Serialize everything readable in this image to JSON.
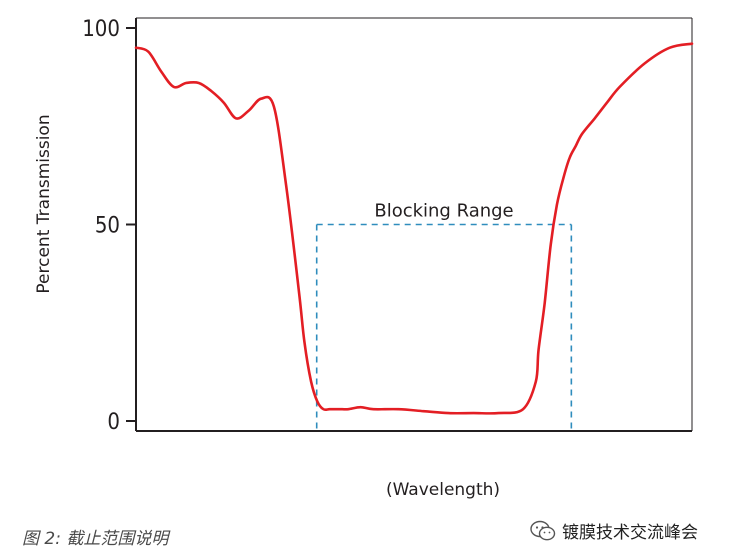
{
  "chart_data": {
    "type": "line",
    "xlabel": "(Wavelength)",
    "ylabel": "Percent Transmission",
    "xlim": [
      0,
      100
    ],
    "ylim": [
      0,
      100
    ],
    "yticks": [
      0,
      50,
      100
    ],
    "grid": false,
    "series": [
      {
        "color": "#e31e24",
        "x": [
          0,
          2.2,
          4.5,
          6.8,
          9,
          11.3,
          13.5,
          15.8,
          18,
          20.3,
          22.5,
          24.8,
          27,
          29.3,
          30.3,
          31.5,
          32.6,
          33.7,
          34.8,
          36,
          37.1,
          38.2,
          40.4,
          42.7,
          47.2,
          51.7,
          56.2,
          60.7,
          65.2,
          69.6,
          71.9,
          72.4,
          73.5,
          74.6,
          75.7,
          76.9,
          78,
          79.1,
          80.2,
          82.5,
          84.7,
          87,
          91.5,
          96,
          100
        ],
        "y": [
          95,
          94,
          89,
          85,
          86,
          86,
          84,
          81,
          77,
          79,
          82,
          80,
          60,
          33,
          20,
          10,
          5,
          3,
          3,
          3,
          3,
          3,
          3.5,
          3,
          3,
          2.5,
          2,
          2,
          2,
          3,
          10,
          18,
          30,
          45,
          55,
          62,
          67,
          70,
          73,
          77,
          81,
          85,
          91,
          95,
          96
        ]
      }
    ],
    "annotations": [
      {
        "text": "Blocking Range",
        "y": 50,
        "x_start": 32.5,
        "x_end": 78.3
      }
    ]
  },
  "caption": "图 2: 截止范围说明",
  "watermark": {
    "icon": "wechat-icon",
    "text": "镀膜技术交流峰会"
  },
  "colors": {
    "curve": "#e31e24",
    "guide": "#2f8dbd",
    "axis": "#231f20"
  }
}
